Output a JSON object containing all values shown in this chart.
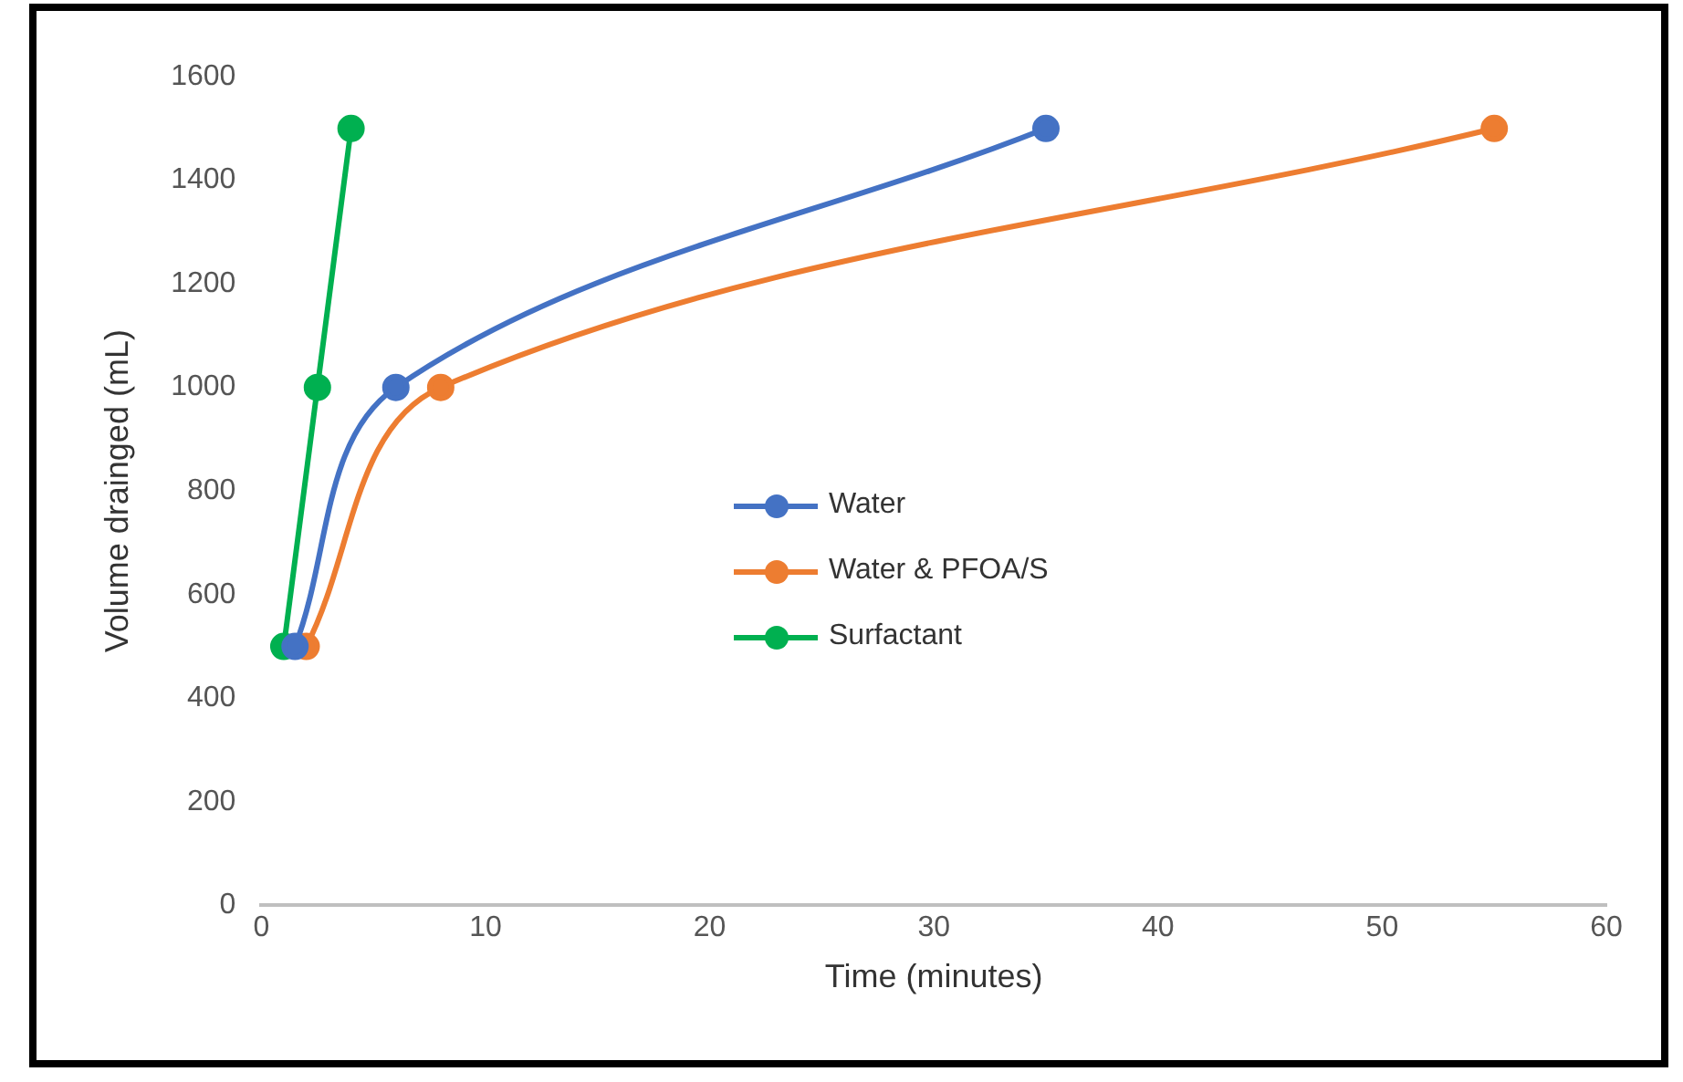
{
  "chart_data": {
    "type": "line",
    "xlabel": "Time (minutes)",
    "ylabel": "Volume drainged (mL)",
    "xlim": [
      0,
      60
    ],
    "xticks": [
      0,
      10,
      20,
      30,
      40,
      50,
      60
    ],
    "ylim": [
      0,
      1600
    ],
    "yticks": [
      0,
      200,
      400,
      600,
      800,
      1000,
      1200,
      1400,
      1600
    ],
    "grid": false,
    "legend": "center",
    "marker": "circle",
    "line_style": "solid",
    "series": [
      {
        "name": "Water",
        "color": "#4472c4",
        "x": [
          1.5,
          6,
          35
        ],
        "values": [
          500,
          1000,
          1500
        ]
      },
      {
        "name": "Water & PFOA/S",
        "color": "#ed7d31",
        "x": [
          2,
          8,
          55
        ],
        "values": [
          500,
          1000,
          1500
        ]
      },
      {
        "name": "Surfactant",
        "color": "#00b050",
        "x": [
          1,
          2.5,
          4
        ],
        "values": [
          500,
          1000,
          1500
        ]
      }
    ]
  }
}
